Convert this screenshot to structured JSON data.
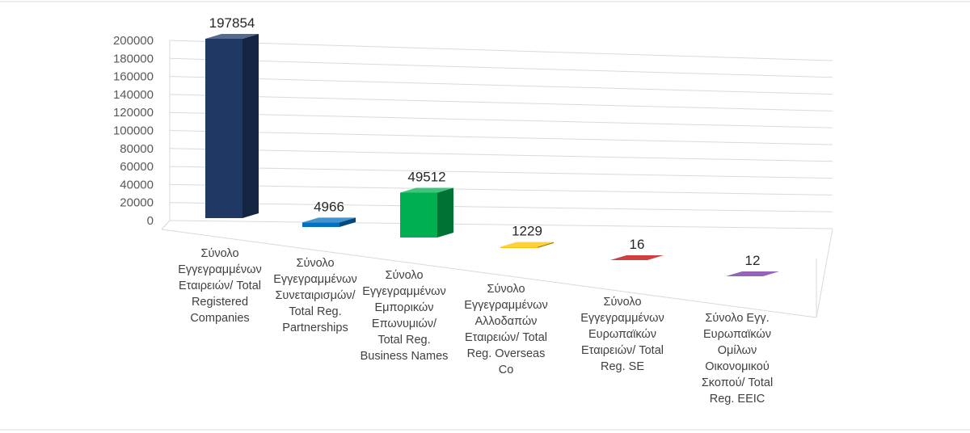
{
  "chart_data": {
    "type": "bar",
    "view": "3d-column",
    "categories": [
      [
        "Σύνολο",
        "Εγγεγραμμένων",
        "Εταιρειών/ Total",
        "Registered",
        "Companies"
      ],
      [
        "Σύνολο",
        "Εγγεγραμμένων",
        "Συνεταιρισμών/",
        "Total Reg.",
        "Partnerships"
      ],
      [
        "Σύνολο",
        "Εγγεγραμμένων",
        "Εμπορικών",
        "Επωνυμιών/",
        "Total Reg.",
        "Business Names"
      ],
      [
        "Σύνολο",
        "Εγγεγραμμένων",
        "Αλλοδαπών",
        "Εταιρειών/ Total",
        "Reg. Overseas",
        "Co"
      ],
      [
        "Σύνολο",
        "Εγγεγραμμένων",
        "Ευρωπαϊκών",
        "Εταιρειών/ Total",
        "Reg. SE"
      ],
      [
        "Σύνολο Εγγ.",
        "Ευρωπαϊκών",
        "Ομίλων",
        "Οικονομικού",
        "Σκοπού/ Total",
        "Reg. EEIC"
      ]
    ],
    "values": [
      197854,
      4966,
      49512,
      1229,
      16,
      12
    ],
    "data_labels": [
      "197854",
      "4966",
      "49512",
      "1229",
      "16",
      "12"
    ],
    "y_ticks": [
      "0",
      "20000",
      "40000",
      "60000",
      "80000",
      "100000",
      "120000",
      "140000",
      "160000",
      "180000",
      "200000"
    ],
    "ylim": [
      0,
      200000
    ],
    "grid": true,
    "legend": "none",
    "colors": [
      "#1f3864",
      "#0070c0",
      "#00b050",
      "#ffc000",
      "#c00000",
      "#7030a0"
    ]
  }
}
